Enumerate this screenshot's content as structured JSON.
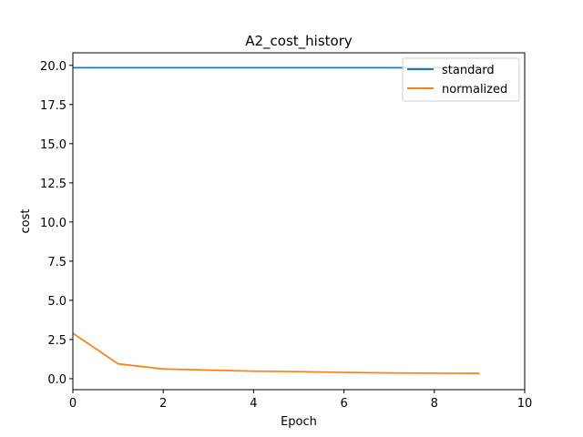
{
  "chart_data": {
    "type": "line",
    "title": "A2_cost_history",
    "xlabel": "Epoch",
    "ylabel": "cost",
    "xlim": [
      0,
      10
    ],
    "ylim": [
      -0.7,
      20.8
    ],
    "xticks": [
      0,
      2,
      4,
      6,
      8,
      10
    ],
    "xtick_labels": [
      "0",
      "2",
      "4",
      "6",
      "8",
      "10"
    ],
    "yticks": [
      0,
      2.5,
      5,
      7.5,
      10,
      12.5,
      15,
      17.5,
      20
    ],
    "ytick_labels": [
      "0.0",
      "2.5",
      "5.0",
      "7.5",
      "10.0",
      "12.5",
      "15.0",
      "17.5",
      "20.0"
    ],
    "grid": false,
    "legend_position": "top-right",
    "series": [
      {
        "name": "standard",
        "color": "#1f77b4",
        "x": [
          0,
          1,
          2,
          3,
          4,
          5,
          6,
          7,
          8,
          9
        ],
        "values": [
          19.85,
          19.85,
          19.85,
          19.85,
          19.85,
          19.85,
          19.85,
          19.85,
          19.85,
          19.85
        ]
      },
      {
        "name": "normalized",
        "color": "#ff7f0e",
        "x": [
          0,
          1,
          2,
          3,
          4,
          5,
          6,
          7,
          8,
          9
        ],
        "values": [
          2.9,
          0.95,
          0.62,
          0.55,
          0.48,
          0.45,
          0.4,
          0.37,
          0.35,
          0.34
        ]
      }
    ]
  }
}
